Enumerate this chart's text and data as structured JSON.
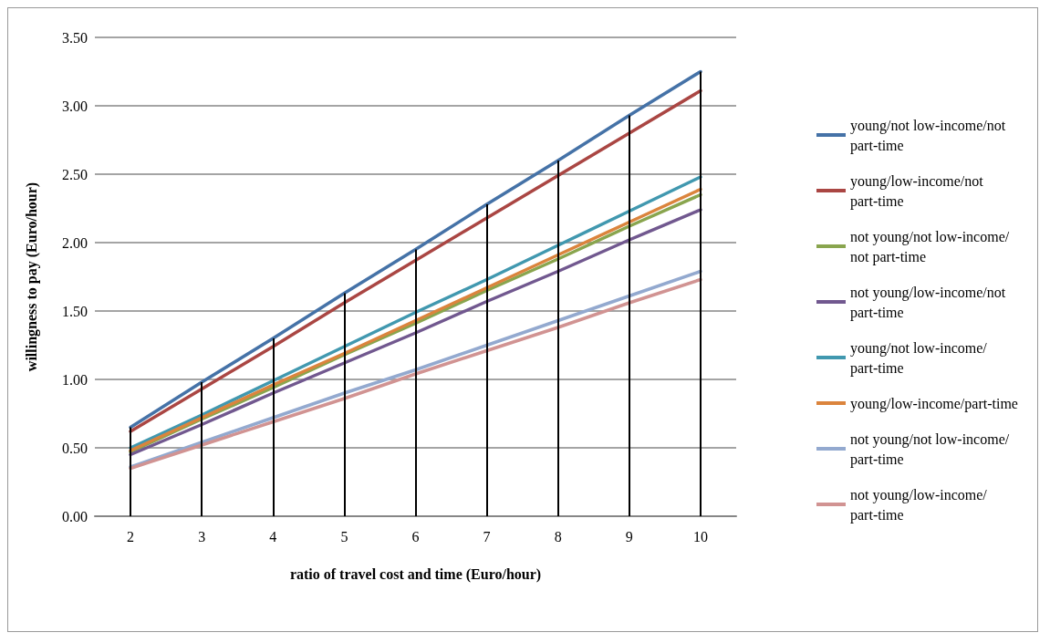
{
  "chart_data": {
    "type": "line",
    "xlabel": "ratio of travel cost and time (Euro/hour)",
    "ylabel": "willingness to pay (Euro/hour)",
    "categories": [
      "2",
      "3",
      "4",
      "5",
      "6",
      "7",
      "8",
      "9",
      "10"
    ],
    "ylim": [
      0,
      3.5
    ],
    "yticks": [
      {
        "value": 0,
        "label": "0.00"
      },
      {
        "value": 0.5,
        "label": "0.50"
      },
      {
        "value": 1,
        "label": "1.00"
      },
      {
        "value": 1.5,
        "label": "1.50"
      },
      {
        "value": 2,
        "label": "2.00"
      },
      {
        "value": 2.5,
        "label": "2.50"
      },
      {
        "value": 3,
        "label": "3.00"
      },
      {
        "value": 3.5,
        "label": "3.50"
      }
    ],
    "grid": "y",
    "legend": "right",
    "marker": "none",
    "line_style": "solid",
    "ref_lines": [
      {
        "axis": "x",
        "value": "2",
        "color": "#000000"
      },
      {
        "axis": "x",
        "value": "3",
        "color": "#000000"
      },
      {
        "axis": "x",
        "value": "4",
        "color": "#000000"
      },
      {
        "axis": "x",
        "value": "5",
        "color": "#000000"
      },
      {
        "axis": "x",
        "value": "6",
        "color": "#000000"
      },
      {
        "axis": "x",
        "value": "7",
        "color": "#000000"
      },
      {
        "axis": "x",
        "value": "8",
        "color": "#000000"
      },
      {
        "axis": "x",
        "value": "9",
        "color": "#000000"
      },
      {
        "axis": "x",
        "value": "10",
        "color": "#000000"
      }
    ],
    "series": [
      {
        "name": "young/not low-income/not part-time",
        "color": "#4572a7",
        "values": [
          0.65,
          0.98,
          1.3,
          1.63,
          1.95,
          2.28,
          2.6,
          2.93,
          3.25
        ]
      },
      {
        "name": "young/low-income/not part-time",
        "color": "#aa4643",
        "values": [
          0.62,
          0.93,
          1.24,
          1.56,
          1.87,
          2.18,
          2.49,
          2.8,
          3.11
        ]
      },
      {
        "name": "not young/not low-income/not part-time",
        "color": "#89a54e",
        "values": [
          0.47,
          0.71,
          0.94,
          1.18,
          1.41,
          1.65,
          1.88,
          2.12,
          2.35
        ]
      },
      {
        "name": "not young/low-income/not part-time",
        "color": "#71588f",
        "values": [
          0.45,
          0.67,
          0.9,
          1.12,
          1.34,
          1.57,
          1.79,
          2.02,
          2.24
        ]
      },
      {
        "name": "young/not low-income/part-time",
        "color": "#4198af",
        "values": [
          0.5,
          0.74,
          0.99,
          1.24,
          1.49,
          1.73,
          1.98,
          2.23,
          2.48
        ]
      },
      {
        "name": "young/low-income/part-time",
        "color": "#db843d",
        "values": [
          0.48,
          0.72,
          0.96,
          1.19,
          1.43,
          1.67,
          1.91,
          2.15,
          2.39
        ]
      },
      {
        "name": "not young/not low-income/part-time",
        "color": "#93a9cf",
        "values": [
          0.36,
          0.54,
          0.72,
          0.9,
          1.07,
          1.25,
          1.43,
          1.61,
          1.79
        ]
      },
      {
        "name": "not young/low-income/part-time",
        "color": "#d19392",
        "values": [
          0.35,
          0.52,
          0.69,
          0.86,
          1.04,
          1.21,
          1.38,
          1.56,
          1.73
        ]
      }
    ]
  }
}
